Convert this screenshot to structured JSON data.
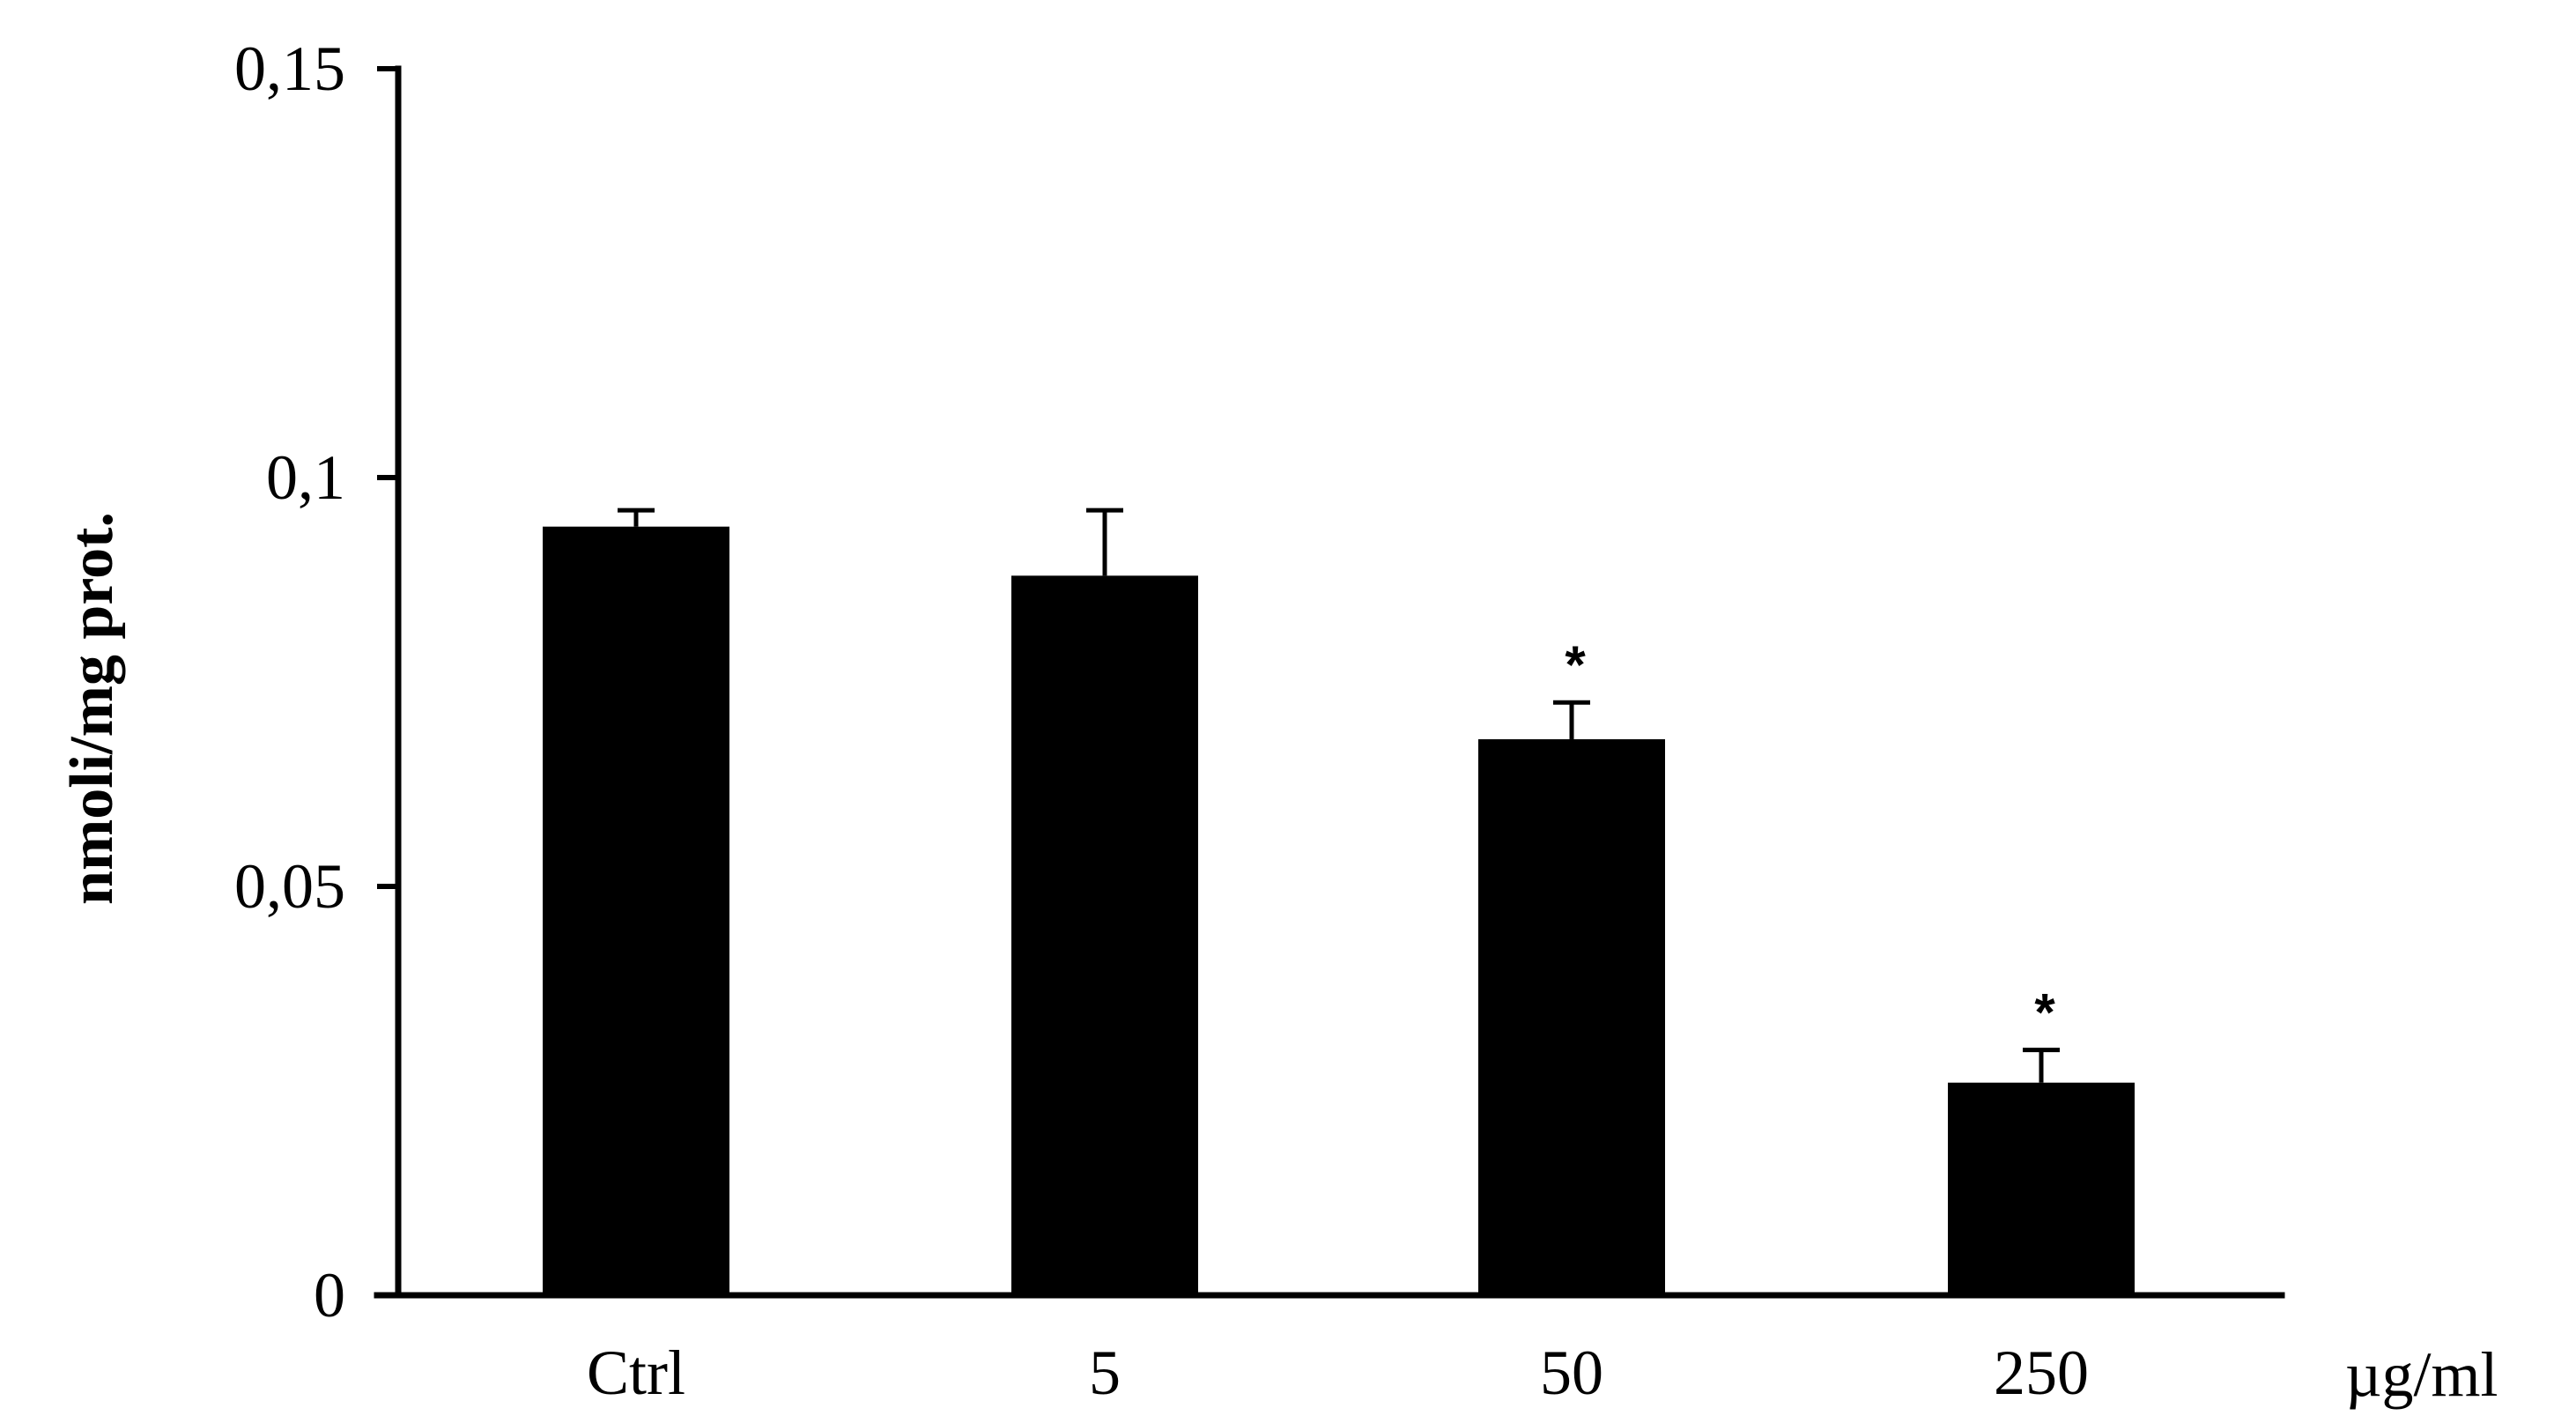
{
  "chart_data": {
    "type": "bar",
    "categories": [
      "Ctrl",
      "5",
      "50",
      "250"
    ],
    "values": [
      0.094,
      0.088,
      0.068,
      0.026
    ],
    "errors": [
      0.002,
      0.008,
      0.0045,
      0.004
    ],
    "significance": [
      "",
      "",
      "*",
      "*"
    ],
    "title": "",
    "xlabel": "µg/ml",
    "ylabel": "nmoli/mg prot.",
    "ylim": [
      0,
      0.15
    ],
    "yticks": [
      0,
      0.05,
      0.1,
      0.15
    ],
    "ytick_labels": [
      "0",
      "0,05",
      "0,1",
      "0,15"
    ],
    "grid": false,
    "legend": "none",
    "bar_color": "#000000"
  }
}
